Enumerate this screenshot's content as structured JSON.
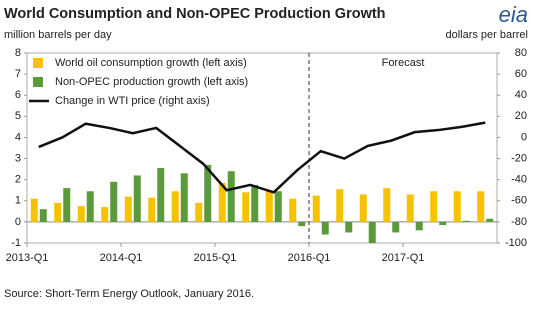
{
  "chart_data": {
    "type": "bar-line",
    "title": "World Consumption and Non-OPEC Production Growth",
    "logo": "eia",
    "y_label": "million barrels per day",
    "y2_label": "dollars per barrel",
    "categories": [
      "2013-Q1",
      null,
      null,
      null,
      "2014-Q1",
      null,
      null,
      null,
      "2015-Q1",
      null,
      null,
      null,
      "2016-Q1",
      null,
      null,
      null,
      "2017-Q1",
      null,
      null,
      null
    ],
    "series": [
      {
        "name": "World oil consumption growth (left axis)",
        "kind": "bar",
        "color": "#f7c200",
        "values": [
          1.1,
          0.9,
          0.75,
          0.7,
          1.2,
          1.15,
          1.45,
          0.9,
          1.85,
          1.4,
          1.45,
          1.1,
          1.25,
          1.55,
          1.3,
          1.6,
          1.3,
          1.45,
          1.45,
          1.45
        ]
      },
      {
        "name": "Non-OPEC production growth (left axis)",
        "kind": "bar",
        "color": "#5b9a3b",
        "values": [
          0.6,
          1.6,
          1.45,
          1.9,
          2.2,
          2.55,
          2.3,
          2.7,
          2.4,
          1.75,
          1.45,
          -0.2,
          -0.6,
          -0.5,
          -1.0,
          -0.5,
          -0.4,
          -0.15,
          0.05,
          0.15
        ]
      },
      {
        "name": "Change in WTI price (right axis)",
        "kind": "line",
        "axis": "y2",
        "color": "#111111",
        "values": [
          -9,
          0,
          13,
          9,
          4,
          9,
          -8,
          -25,
          -50,
          -45,
          -52,
          -31,
          -13,
          -20,
          -8,
          -3,
          5,
          7,
          10,
          14
        ]
      }
    ],
    "ylim": [
      -1,
      8
    ],
    "yticks": [
      -1,
      0,
      1,
      2,
      3,
      4,
      5,
      6,
      7,
      8
    ],
    "y2lim": [
      -100,
      80
    ],
    "y2ticks": [
      -100,
      -80,
      -60,
      -40,
      -20,
      0,
      20,
      40,
      60,
      80
    ],
    "forecast_start": "2016-Q1",
    "forecast_label": "Forecast",
    "legend": "top-left",
    "source": "Source: Short-Term Energy Outlook, January 2016."
  }
}
